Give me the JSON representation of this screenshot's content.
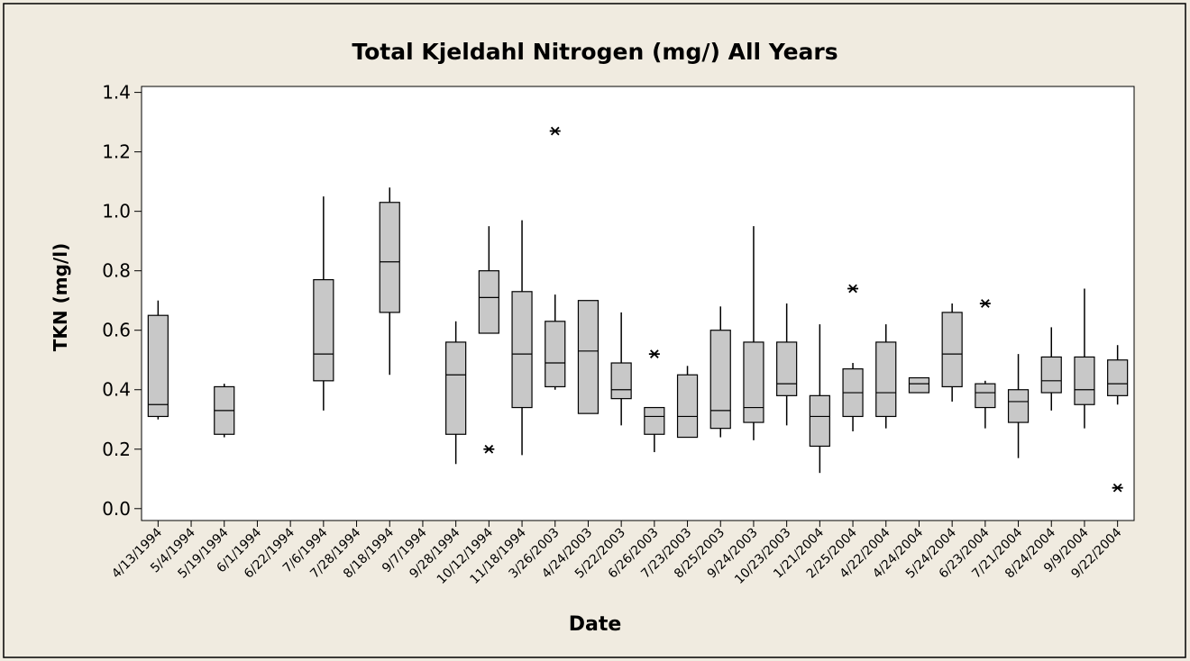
{
  "chart_data": {
    "type": "box",
    "title": "Total Kjeldahl Nitrogen (mg/) All Years",
    "x_label": "Date",
    "y_label": "TKN (mg/l)",
    "categories": [
      "4/13/1994",
      "5/4/1994",
      "5/19/1994",
      "6/1/1994",
      "6/22/1994",
      "7/6/1994",
      "7/28/1994",
      "8/18/1994",
      "9/7/1994",
      "9/28/1994",
      "10/12/1994",
      "11/18/1994",
      "3/26/2003",
      "4/24/2003",
      "5/22/2003",
      "6/26/2003",
      "7/23/2003",
      "8/25/2003",
      "9/24/2003",
      "10/23/2003",
      "1/21/2004",
      "2/25/2004",
      "4/22/2004",
      "4/24/2004",
      "5/24/2004",
      "6/23/2004",
      "7/21/2004",
      "8/24/2004",
      "9/9/2004",
      "9/22/2004"
    ],
    "boxes": [
      {
        "min": 0.3,
        "q1": 0.31,
        "median": 0.35,
        "q3": 0.65,
        "max": 0.7,
        "outliers": []
      },
      null,
      {
        "min": 0.24,
        "q1": 0.25,
        "median": 0.33,
        "q3": 0.41,
        "max": 0.42,
        "outliers": []
      },
      null,
      null,
      {
        "min": 0.33,
        "q1": 0.43,
        "median": 0.52,
        "q3": 0.77,
        "max": 1.05,
        "outliers": []
      },
      null,
      {
        "min": 0.45,
        "q1": 0.66,
        "median": 0.83,
        "q3": 1.03,
        "max": 1.08,
        "outliers": []
      },
      null,
      {
        "min": 0.15,
        "q1": 0.25,
        "median": 0.45,
        "q3": 0.56,
        "max": 0.63,
        "outliers": []
      },
      {
        "min": 0.59,
        "q1": 0.59,
        "median": 0.71,
        "q3": 0.8,
        "max": 0.95,
        "outliers": [
          0.2
        ]
      },
      {
        "min": 0.18,
        "q1": 0.34,
        "median": 0.52,
        "q3": 0.73,
        "max": 0.97,
        "outliers": []
      },
      {
        "min": 0.4,
        "q1": 0.41,
        "median": 0.49,
        "q3": 0.63,
        "max": 0.72,
        "outliers": [
          1.27
        ]
      },
      {
        "min": 0.32,
        "q1": 0.32,
        "median": 0.53,
        "q3": 0.7,
        "max": 0.7,
        "outliers": []
      },
      {
        "min": 0.28,
        "q1": 0.37,
        "median": 0.4,
        "q3": 0.49,
        "max": 0.66,
        "outliers": []
      },
      {
        "min": 0.19,
        "q1": 0.25,
        "median": 0.31,
        "q3": 0.34,
        "max": 0.34,
        "outliers": [
          0.52
        ]
      },
      {
        "min": 0.24,
        "q1": 0.24,
        "median": 0.31,
        "q3": 0.45,
        "max": 0.48,
        "outliers": []
      },
      {
        "min": 0.24,
        "q1": 0.27,
        "median": 0.33,
        "q3": 0.6,
        "max": 0.68,
        "outliers": []
      },
      {
        "min": 0.23,
        "q1": 0.29,
        "median": 0.34,
        "q3": 0.56,
        "max": 0.95,
        "outliers": []
      },
      {
        "min": 0.28,
        "q1": 0.38,
        "median": 0.42,
        "q3": 0.56,
        "max": 0.69,
        "outliers": []
      },
      {
        "min": 0.12,
        "q1": 0.21,
        "median": 0.31,
        "q3": 0.38,
        "max": 0.62,
        "outliers": []
      },
      {
        "min": 0.26,
        "q1": 0.31,
        "median": 0.39,
        "q3": 0.47,
        "max": 0.49,
        "outliers": [
          0.74
        ]
      },
      {
        "min": 0.27,
        "q1": 0.31,
        "median": 0.39,
        "q3": 0.56,
        "max": 0.62,
        "outliers": []
      },
      {
        "min": 0.39,
        "q1": 0.39,
        "median": 0.42,
        "q3": 0.44,
        "max": 0.44,
        "outliers": []
      },
      {
        "min": 0.36,
        "q1": 0.41,
        "median": 0.52,
        "q3": 0.66,
        "max": 0.69,
        "outliers": []
      },
      {
        "min": 0.27,
        "q1": 0.34,
        "median": 0.39,
        "q3": 0.42,
        "max": 0.43,
        "outliers": [
          0.69
        ]
      },
      {
        "min": 0.17,
        "q1": 0.29,
        "median": 0.36,
        "q3": 0.4,
        "max": 0.52,
        "outliers": []
      },
      {
        "min": 0.33,
        "q1": 0.39,
        "median": 0.43,
        "q3": 0.51,
        "max": 0.61,
        "outliers": []
      },
      {
        "min": 0.27,
        "q1": 0.35,
        "median": 0.4,
        "q3": 0.51,
        "max": 0.74,
        "outliers": []
      },
      {
        "min": 0.35,
        "q1": 0.38,
        "median": 0.42,
        "q3": 0.5,
        "max": 0.55,
        "outliers": [
          0.07
        ]
      }
    ],
    "color": "#c8c8c8",
    "ylim": [
      -0.04,
      1.42
    ],
    "yticks": [
      {
        "value": 0,
        "label": "0.0"
      },
      0.2,
      0.4,
      0.6,
      0.8,
      {
        "value": 1,
        "label": "1.0"
      },
      1.2,
      1.4
    ]
  }
}
